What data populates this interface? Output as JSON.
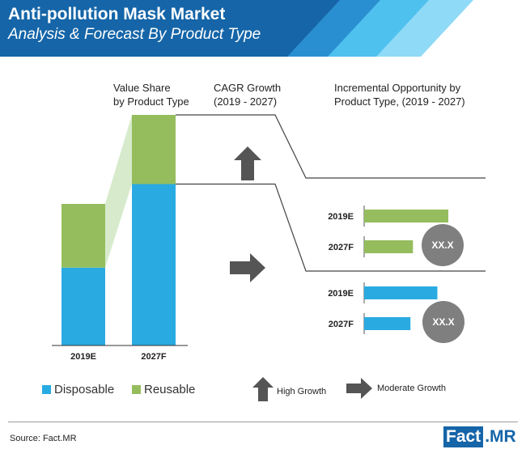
{
  "header": {
    "title": "Anti-pollution Mask Market",
    "subtitle": "Analysis & Forecast By Product Type"
  },
  "section_headers": {
    "value_share_line1": "Value Share",
    "value_share_line2": "by Product Type",
    "cagr_line1": "CAGR Growth",
    "cagr_line2": "(2019 - 2027)",
    "incremental_line1": "Incremental Opportunity by",
    "incremental_line2": "Product Type, (2019 - 2027)"
  },
  "chart_data": [
    {
      "type": "bar",
      "stacked": true,
      "title": "Value Share by Product Type",
      "categories": [
        "2019E",
        "2027F"
      ],
      "series": [
        {
          "name": "Disposable",
          "values": [
            55,
            70
          ],
          "color": "#29abe2"
        },
        {
          "name": "Reusable",
          "values": [
            45,
            30
          ],
          "color": "#95bd5d"
        }
      ],
      "ylim": [
        0,
        100
      ]
    },
    {
      "type": "bar",
      "orientation": "horizontal",
      "title": "Incremental Opportunity by Product Type, (2019 - 2027)",
      "groups": [
        {
          "series": "Reusable",
          "color": "#95bd5d",
          "categories": [
            "2019E",
            "2027F"
          ],
          "values": [
            100,
            58
          ],
          "badge": "XX.X",
          "cagr_arrow": "up-arrow"
        },
        {
          "series": "Disposable",
          "color": "#29abe2",
          "categories": [
            "2019E",
            "2027F"
          ],
          "values": [
            87,
            55
          ],
          "badge": "XX.X",
          "cagr_arrow": "right-arrow"
        }
      ]
    }
  ],
  "growth_legend": {
    "high_label": "High Growth",
    "high_icon": "up-arrow",
    "moderate_label": "Moderate Growth",
    "moderate_icon": "right-arrow"
  },
  "source": "Source: Fact.MR",
  "logo": {
    "part1": "Fact",
    "part2": ".MR"
  },
  "colors": {
    "disposable": "#29abe2",
    "reusable": "#95bd5d",
    "banner_dark": "#1565a8",
    "banner_light": "#4fc1ef",
    "arrow": "#555555",
    "badge": "#7f7f7f"
  }
}
